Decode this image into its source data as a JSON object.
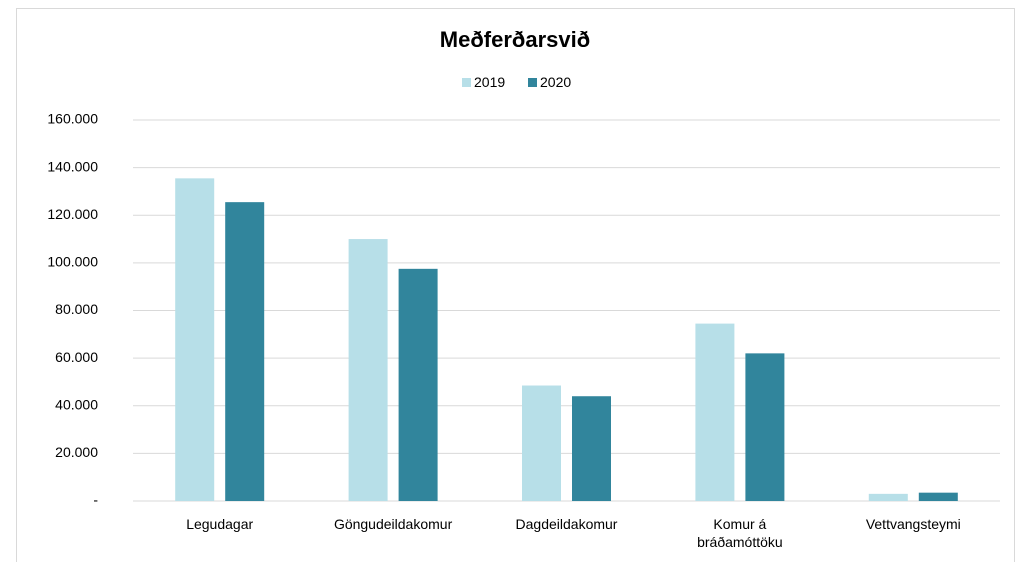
{
  "chart_data": {
    "type": "bar",
    "title": "Meðferðarsvið",
    "categories": [
      "Legudagar",
      "Göngudeildakomur",
      "Dagdeildakomur",
      "Komur á bráðamóttöku",
      "Vettvangsteymi"
    ],
    "series": [
      {
        "name": "2019",
        "color": "#b7dfe8",
        "values": [
          135500,
          110000,
          48500,
          74500,
          3000
        ]
      },
      {
        "name": "2020",
        "color": "#31859c",
        "values": [
          125500,
          97500,
          44000,
          62000,
          3500
        ]
      }
    ],
    "ylim": [
      0,
      160000
    ],
    "yticks": [
      {
        "value": 0,
        "label": "-"
      },
      {
        "value": 20000,
        "label": "20.000"
      },
      {
        "value": 40000,
        "label": "40.000"
      },
      {
        "value": 60000,
        "label": "60.000"
      },
      {
        "value": 80000,
        "label": "80.000"
      },
      {
        "value": 100000,
        "label": "100.000"
      },
      {
        "value": 120000,
        "label": "120.000"
      },
      {
        "value": 140000,
        "label": "140.000"
      },
      {
        "value": 160000,
        "label": "160.000"
      }
    ],
    "grid": true,
    "legend": "top"
  }
}
